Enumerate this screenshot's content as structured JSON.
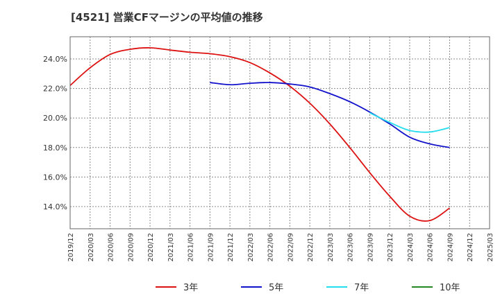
{
  "chart_data": {
    "type": "line",
    "title": "[4521]  営業CFマージンの平均値の推移",
    "xlabel": "",
    "ylabel": "",
    "x_ticks": [
      "2019/12",
      "2020/03",
      "2020/06",
      "2020/09",
      "2020/12",
      "2021/03",
      "2021/06",
      "2021/09",
      "2021/12",
      "2022/03",
      "2022/06",
      "2022/09",
      "2022/12",
      "2023/03",
      "2023/06",
      "2023/09",
      "2023/12",
      "2024/03",
      "2024/06",
      "2024/09",
      "2024/12",
      "2025/03"
    ],
    "y_ticks": [
      "14.0%",
      "16.0%",
      "18.0%",
      "20.0%",
      "22.0%",
      "24.0%"
    ],
    "y_tick_values": [
      14,
      16,
      18,
      20,
      22,
      24
    ],
    "ylim": [
      12.5,
      25.5
    ],
    "grid": true,
    "legend_position": "bottom",
    "series": [
      {
        "name": "3年",
        "color": "#dd1111",
        "values": [
          22.2,
          23.4,
          24.3,
          24.65,
          24.75,
          24.6,
          24.45,
          24.35,
          24.15,
          23.75,
          23.05,
          22.15,
          21.0,
          19.6,
          18.0,
          16.3,
          14.7,
          13.35,
          13.05,
          13.9
        ]
      },
      {
        "name": "5年",
        "color": "#1111cc",
        "values": [
          null,
          null,
          null,
          null,
          null,
          null,
          null,
          22.4,
          22.25,
          22.35,
          22.4,
          22.3,
          22.1,
          21.65,
          21.1,
          20.4,
          19.6,
          18.7,
          18.25,
          18.0
        ]
      },
      {
        "name": "7年",
        "color": "#22ddee",
        "values": [
          null,
          null,
          null,
          null,
          null,
          null,
          null,
          null,
          null,
          null,
          null,
          null,
          null,
          null,
          null,
          20.35,
          19.7,
          19.15,
          19.05,
          19.35
        ]
      },
      {
        "name": "10年",
        "color": "#228822",
        "values": []
      }
    ]
  }
}
